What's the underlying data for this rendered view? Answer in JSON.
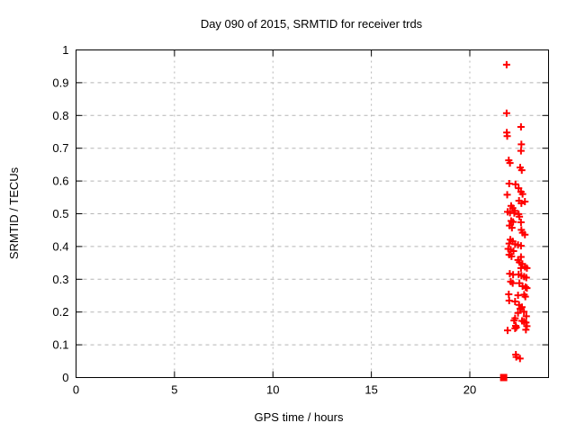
{
  "chart_data": {
    "type": "scatter",
    "title": "Day 090 of 2015, SRMTID for receiver trds",
    "xlabel": "GPS time / hours",
    "ylabel": "SRMTID / TECUs",
    "xlim": [
      0,
      24
    ],
    "ylim": [
      0,
      1
    ],
    "grid": true,
    "grid_color": "#b5b5b5",
    "frame_color": "#000000",
    "accent_color": "#ff0000",
    "xtick_values": [
      0,
      5,
      10,
      15,
      20
    ],
    "xtick_labels": [
      "0",
      "5",
      "10",
      "15",
      "20"
    ],
    "ytick_values": [
      0,
      0.1,
      0.2,
      0.3,
      0.4,
      0.5,
      0.6,
      0.7,
      0.8,
      0.9,
      1
    ],
    "ytick_labels": [
      "0",
      "0.1",
      "0.2",
      "0.3",
      "0.4",
      "0.5",
      "0.6",
      "0.7",
      "0.8",
      "0.9",
      "1"
    ],
    "series": [
      {
        "marker": "plus",
        "color": "#ff0000",
        "points": [
          [
            21.87,
            0.955
          ],
          [
            21.87,
            0.807
          ],
          [
            22.6,
            0.765
          ],
          [
            21.88,
            0.748
          ],
          [
            21.9,
            0.737
          ],
          [
            22.62,
            0.712
          ],
          [
            22.6,
            0.692
          ],
          [
            21.98,
            0.663
          ],
          [
            22.04,
            0.655
          ],
          [
            22.56,
            0.641
          ],
          [
            22.64,
            0.633
          ],
          [
            22.0,
            0.592
          ],
          [
            22.32,
            0.59
          ],
          [
            22.48,
            0.578
          ],
          [
            22.6,
            0.567
          ],
          [
            22.68,
            0.56
          ],
          [
            21.9,
            0.558
          ],
          [
            22.5,
            0.54
          ],
          [
            22.8,
            0.537
          ],
          [
            22.62,
            0.532
          ],
          [
            22.1,
            0.524
          ],
          [
            22.18,
            0.517
          ],
          [
            22.28,
            0.509
          ],
          [
            21.92,
            0.506
          ],
          [
            22.04,
            0.503
          ],
          [
            22.26,
            0.502
          ],
          [
            22.48,
            0.499
          ],
          [
            22.52,
            0.491
          ],
          [
            22.1,
            0.478
          ],
          [
            22.2,
            0.475
          ],
          [
            22.6,
            0.474
          ],
          [
            22.02,
            0.464
          ],
          [
            22.14,
            0.457
          ],
          [
            22.62,
            0.451
          ],
          [
            22.68,
            0.442
          ],
          [
            22.8,
            0.436
          ],
          [
            22.06,
            0.421
          ],
          [
            22.18,
            0.416
          ],
          [
            22.0,
            0.409
          ],
          [
            22.3,
            0.407
          ],
          [
            22.45,
            0.405
          ],
          [
            22.6,
            0.402
          ],
          [
            21.95,
            0.393
          ],
          [
            22.08,
            0.39
          ],
          [
            22.22,
            0.386
          ],
          [
            22.0,
            0.375
          ],
          [
            22.12,
            0.37
          ],
          [
            22.6,
            0.368
          ],
          [
            22.45,
            0.359
          ],
          [
            22.52,
            0.352
          ],
          [
            22.67,
            0.347
          ],
          [
            22.8,
            0.338
          ],
          [
            22.6,
            0.334
          ],
          [
            22.9,
            0.334
          ],
          [
            22.03,
            0.317
          ],
          [
            22.2,
            0.314
          ],
          [
            22.48,
            0.315
          ],
          [
            22.62,
            0.311
          ],
          [
            22.76,
            0.308
          ],
          [
            22.87,
            0.305
          ],
          [
            22.08,
            0.293
          ],
          [
            22.18,
            0.288
          ],
          [
            22.52,
            0.288
          ],
          [
            22.68,
            0.279
          ],
          [
            22.83,
            0.276
          ],
          [
            22.9,
            0.273
          ],
          [
            21.98,
            0.254
          ],
          [
            22.45,
            0.251
          ],
          [
            22.76,
            0.253
          ],
          [
            22.82,
            0.247
          ],
          [
            22.0,
            0.235
          ],
          [
            22.3,
            0.232
          ],
          [
            22.5,
            0.222
          ],
          [
            22.65,
            0.215
          ],
          [
            22.56,
            0.21
          ],
          [
            22.75,
            0.201
          ],
          [
            22.45,
            0.197
          ],
          [
            22.87,
            0.187
          ],
          [
            22.3,
            0.181
          ],
          [
            22.25,
            0.174
          ],
          [
            22.65,
            0.173
          ],
          [
            22.75,
            0.171
          ],
          [
            22.85,
            0.168
          ],
          [
            22.33,
            0.158
          ],
          [
            22.36,
            0.153
          ],
          [
            22.3,
            0.15
          ],
          [
            22.9,
            0.157
          ],
          [
            22.85,
            0.146
          ],
          [
            21.92,
            0.144
          ],
          [
            22.34,
            0.07
          ],
          [
            22.36,
            0.063
          ],
          [
            22.55,
            0.058
          ]
        ]
      },
      {
        "marker": "square",
        "color": "#ff0000",
        "points": [
          [
            21.72,
            0.0
          ]
        ]
      }
    ]
  }
}
